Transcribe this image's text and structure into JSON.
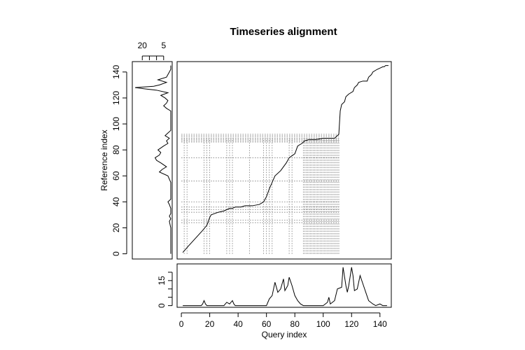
{
  "chart_data": {
    "type": "line",
    "title": "Timeseries alignment",
    "xlabel": "Query index",
    "ylabel": "Reference index",
    "main_plot": {
      "xlim": [
        -3,
        148
      ],
      "ylim": [
        -4,
        148
      ],
      "x_ticks": [
        0,
        20,
        40,
        60,
        80,
        100,
        120,
        140
      ],
      "y_ticks": [
        0,
        20,
        40,
        60,
        80,
        100,
        120,
        140
      ],
      "warping_path": {
        "x": [
          1,
          5,
          10,
          15,
          18,
          19,
          20,
          21,
          26,
          30,
          34,
          36,
          38,
          42,
          45,
          50,
          55,
          58,
          59,
          60,
          61,
          62,
          64,
          66,
          70,
          74,
          76,
          80,
          81,
          82,
          85,
          87,
          90,
          95,
          100,
          108,
          109,
          111,
          112,
          113,
          115,
          116,
          118,
          121,
          122,
          124,
          125,
          128,
          131,
          132,
          134,
          135,
          138,
          140,
          142,
          143,
          144,
          146
        ],
        "y": [
          1,
          6,
          12,
          18,
          22,
          25,
          28,
          30,
          32,
          33,
          35,
          35,
          36,
          36,
          37,
          37,
          38,
          40,
          42,
          44,
          47,
          50,
          55,
          60,
          64,
          70,
          74,
          77,
          80,
          83,
          85,
          87,
          88,
          88,
          89,
          89,
          90,
          92,
          110,
          115,
          117,
          121,
          123,
          125,
          128,
          130,
          132,
          133,
          133,
          136,
          138,
          140,
          142,
          143,
          144,
          144,
          145,
          145
        ]
      },
      "dotted_horizontal_levels": [
        24,
        26,
        32,
        34,
        36,
        40,
        56,
        74,
        86,
        87,
        88,
        89,
        90,
        91,
        92
      ],
      "dotted_vertical_positions": [
        2,
        4,
        16,
        18,
        20,
        32,
        34,
        36,
        48,
        58,
        60,
        62,
        64,
        76,
        78,
        86,
        87,
        88,
        89,
        90,
        91,
        92,
        93,
        94,
        95,
        96,
        97,
        98,
        99,
        100,
        101,
        102,
        103,
        104,
        105,
        106,
        107,
        108,
        109,
        110,
        111
      ],
      "horizontal_line_extent": 111,
      "vertical_line_extent": 89
    },
    "query_series": {
      "ylim": [
        -1,
        25
      ],
      "y_ticks": [
        0,
        5,
        10,
        15,
        20
      ],
      "y_tick_labels": [
        "0",
        "",
        "",
        "15",
        ""
      ],
      "x": [
        1,
        14,
        15,
        16,
        17,
        18,
        30,
        32,
        34,
        35,
        36,
        37,
        38,
        40,
        60,
        62,
        64,
        66,
        68,
        70,
        72,
        73,
        75,
        76,
        78,
        80,
        82,
        84,
        86,
        88,
        100,
        103,
        104,
        105,
        108,
        110,
        113,
        114,
        116,
        117,
        118,
        120,
        121,
        122,
        124,
        126,
        128,
        130,
        132,
        135,
        137,
        140,
        142,
        145
      ],
      "y": [
        0,
        0,
        1,
        3,
        1,
        0,
        0,
        2,
        1,
        2,
        3,
        1,
        0,
        0,
        0,
        4,
        6,
        14,
        8,
        10,
        16,
        9,
        12,
        17,
        12,
        6,
        3,
        1,
        0,
        0,
        0,
        2,
        5,
        1,
        3,
        10,
        11,
        23,
        12,
        8,
        12,
        23,
        18,
        9,
        10,
        18,
        13,
        8,
        3,
        1,
        0,
        1,
        0,
        0
      ]
    },
    "reference_series": {
      "xlim": [
        27,
        -1
      ],
      "x_ticks": [
        20,
        15,
        10,
        5
      ],
      "x_tick_labels": [
        "20",
        "",
        "",
        "5"
      ],
      "y": [
        0,
        10,
        20,
        25,
        27,
        29,
        31,
        35,
        38,
        40,
        42,
        44,
        50,
        55,
        60,
        63,
        65,
        67,
        70,
        72,
        74,
        76,
        78,
        80,
        83,
        85,
        87,
        89,
        91,
        93,
        95,
        100,
        105,
        110,
        112,
        114,
        116,
        118,
        120,
        122,
        124,
        126,
        127,
        128,
        129,
        130,
        132,
        134,
        136,
        138,
        140,
        142,
        145
      ],
      "x": [
        0,
        0,
        0,
        1,
        0,
        1,
        0,
        0,
        1,
        2,
        0,
        0,
        0,
        0,
        2,
        8,
        6,
        3,
        7,
        10,
        11,
        8,
        7,
        9,
        5,
        2,
        3,
        1,
        4,
        2,
        0,
        0,
        0,
        0,
        3,
        5,
        3,
        2,
        4,
        7,
        2,
        10,
        18,
        25,
        12,
        8,
        3,
        9,
        3,
        2,
        1,
        0,
        0
      ]
    }
  }
}
